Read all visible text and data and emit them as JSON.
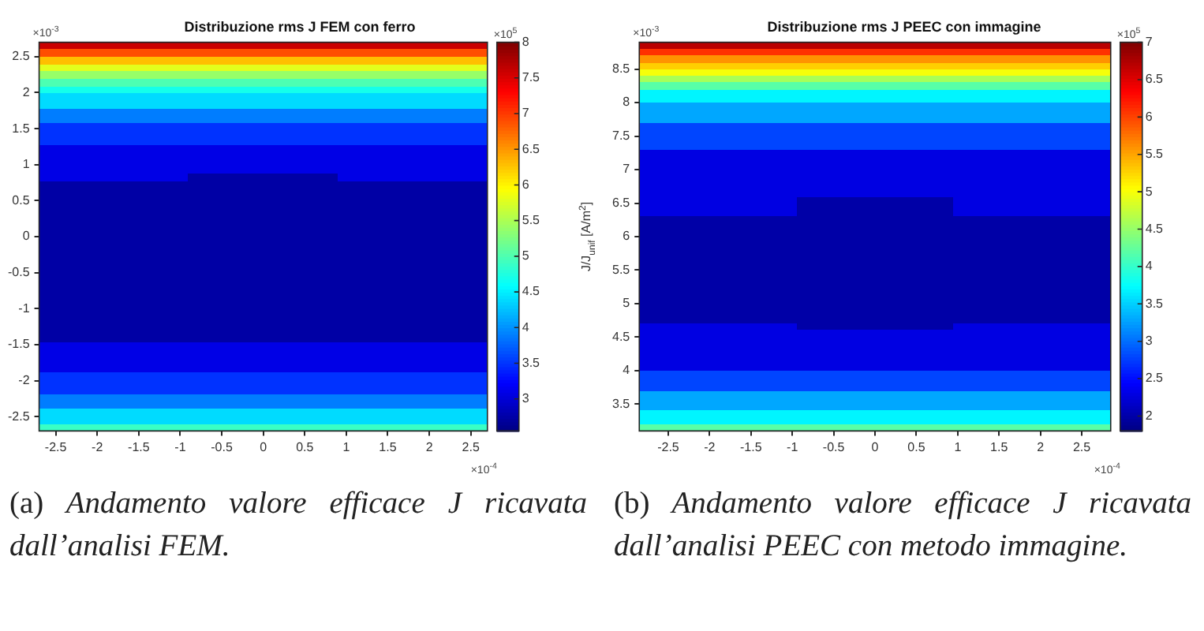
{
  "chart_data": [
    {
      "type": "heatmap",
      "title": "Distribuzione rms J FEM con ferro",
      "clabel": "J/J$_{unif}$ [A/m$^{2}$]",
      "annotations": [
        "×10$^{-3}$",
        "×10$^{-4}$",
        "×10$^{5}$",
        "(a) Andamento valore efficace J ricavata dall’analisi FEM."
      ],
      "xlim": [
        -2.7,
        2.7
      ],
      "xticks": [
        -2.5,
        -2,
        -1.5,
        -1,
        -0.5,
        0,
        0.5,
        1,
        1.5,
        2,
        2.5
      ],
      "ylim": [
        -2.7,
        2.7
      ],
      "yticks": [
        -2.5,
        -2,
        -1.5,
        -1,
        -0.5,
        0,
        0.5,
        1,
        1.5,
        2,
        2.5
      ],
      "clim": [
        2.55,
        8
      ],
      "cticks": [
        3,
        3.5,
        4,
        4.5,
        5,
        5.5,
        6,
        6.5,
        7,
        7.5,
        8
      ],
      "cells": [
        [
          7.6,
          7.6,
          7.6
        ],
        [
          6.9,
          6.9,
          6.9
        ],
        [
          6.3,
          6.3,
          6.3
        ],
        [
          5.8,
          5.8,
          5.8
        ],
        [
          5.4,
          5.4,
          5.4
        ],
        [
          5,
          5,
          5
        ],
        [
          4.7,
          4.7,
          4.7
        ],
        [
          4.4,
          4.4,
          4.4
        ],
        [
          4.4,
          4.4,
          4.4
        ],
        [
          3.9,
          3.9,
          3.9
        ],
        [
          3.9,
          3.9,
          3.9
        ],
        [
          3.5,
          3.5,
          3.5
        ],
        [
          3.5,
          3.5,
          3.5
        ],
        [
          3.5,
          3.5,
          3.5
        ],
        [
          3.1,
          3.1,
          3.1
        ],
        [
          3.1,
          3.1,
          3.1
        ],
        [
          3.1,
          3.1,
          3.1
        ],
        [
          3.1,
          3.1,
          3.1
        ],
        [
          3.1,
          2.75,
          3.1
        ],
        [
          2.75,
          2.75,
          2.75
        ],
        [
          2.75,
          2.75,
          2.75
        ],
        [
          2.75,
          2.75,
          2.75
        ],
        [
          2.75,
          2.75,
          2.75
        ],
        [
          2.75,
          2.75,
          2.75
        ],
        [
          2.75,
          2.75,
          2.75
        ],
        [
          2.75,
          2.75,
          2.75
        ],
        [
          2.75,
          2.75,
          2.75
        ],
        [
          2.75,
          2.75,
          2.75
        ],
        [
          2.75,
          2.75,
          2.75
        ],
        [
          2.75,
          2.75,
          2.75
        ],
        [
          2.75,
          2.75,
          2.75
        ],
        [
          2.75,
          2.75,
          2.75
        ],
        [
          2.75,
          2.75,
          2.75
        ],
        [
          2.75,
          2.75,
          2.75
        ],
        [
          2.75,
          2.75,
          2.75
        ],
        [
          2.75,
          2.75,
          2.75
        ],
        [
          2.75,
          2.75,
          2.75
        ],
        [
          2.75,
          2.75,
          2.75
        ],
        [
          2.75,
          2.75,
          2.75
        ],
        [
          2.75,
          2.75,
          2.75
        ],
        [
          2.75,
          2.75,
          2.75
        ],
        [
          3.1,
          3.1,
          3.1
        ],
        [
          3.1,
          3.1,
          3.1
        ],
        [
          3.1,
          3.1,
          3.1
        ],
        [
          3.1,
          3.1,
          3.1
        ],
        [
          3.5,
          3.5,
          3.5
        ],
        [
          3.5,
          3.5,
          3.5
        ],
        [
          3.5,
          3.5,
          3.5
        ],
        [
          3.9,
          3.9,
          3.9
        ],
        [
          3.9,
          3.9,
          3.9
        ],
        [
          4.4,
          4.4,
          4.4
        ],
        [
          4.4,
          4.4,
          4.4
        ],
        [
          4.9,
          4.9,
          4.9
        ]
      ]
    },
    {
      "type": "heatmap",
      "title": "Distribuzione rms J PEEC con immagine",
      "annotations": [
        "×10$^{-3}$",
        "×10$^{-4}$",
        "×10$^{5}$",
        "(b) Andamento valore efficace J ricavata dall’analisi PEEC con metodo immagine."
      ],
      "xlim": [
        -2.85,
        2.85
      ],
      "xticks": [
        -2.5,
        -2,
        -1.5,
        -1,
        -0.5,
        0,
        0.5,
        1,
        1.5,
        2,
        2.5
      ],
      "ylim": [
        3.1,
        8.9
      ],
      "yticks": [
        3.5,
        4,
        4.5,
        5,
        5.5,
        6,
        6.5,
        7,
        7.5,
        8,
        8.5
      ],
      "clim": [
        1.8,
        7
      ],
      "cticks": [
        2,
        2.5,
        3,
        3.5,
        4,
        4.5,
        5,
        5.5,
        6,
        6.5,
        7
      ],
      "cells": [
        [
          6.7,
          6.7,
          6.7
        ],
        [
          6.1,
          6.1,
          6.1
        ],
        [
          5.6,
          5.6,
          5.6
        ],
        [
          5.3,
          5.3,
          5.3
        ],
        [
          5,
          5,
          5
        ],
        [
          4.6,
          4.6,
          4.6
        ],
        [
          4.2,
          4.2,
          4.2
        ],
        [
          3.7,
          3.7,
          3.7
        ],
        [
          3.7,
          3.7,
          3.7
        ],
        [
          3.3,
          3.3,
          3.3
        ],
        [
          3.3,
          3.3,
          3.3
        ],
        [
          3.3,
          3.3,
          3.3
        ],
        [
          2.8,
          2.8,
          2.8
        ],
        [
          2.8,
          2.8,
          2.8
        ],
        [
          2.8,
          2.8,
          2.8
        ],
        [
          2.8,
          2.8,
          2.8
        ],
        [
          2.3,
          2.3,
          2.3
        ],
        [
          2.3,
          2.3,
          2.3
        ],
        [
          2.3,
          2.3,
          2.3
        ],
        [
          2.3,
          2.3,
          2.3
        ],
        [
          2.3,
          2.3,
          2.3
        ],
        [
          2.3,
          2.3,
          2.3
        ],
        [
          2.3,
          2.3,
          2.3
        ],
        [
          2.3,
          2,
          2.3
        ],
        [
          2.3,
          2,
          2.3
        ],
        [
          2.3,
          2,
          2.3
        ],
        [
          2,
          2,
          2
        ],
        [
          2,
          2,
          2
        ],
        [
          2,
          2,
          2
        ],
        [
          2,
          2,
          2
        ],
        [
          2,
          2,
          2
        ],
        [
          2,
          2,
          2
        ],
        [
          2,
          2,
          2
        ],
        [
          2,
          2,
          2
        ],
        [
          2,
          2,
          2
        ],
        [
          2,
          2,
          2
        ],
        [
          2,
          2,
          2
        ],
        [
          2,
          2,
          2
        ],
        [
          2,
          2,
          2
        ],
        [
          2,
          2,
          2
        ],
        [
          2,
          2,
          2
        ],
        [
          2,
          2,
          2
        ],
        [
          2.3,
          2,
          2.3
        ],
        [
          2.3,
          2.3,
          2.3
        ],
        [
          2.3,
          2.3,
          2.3
        ],
        [
          2.3,
          2.3,
          2.3
        ],
        [
          2.3,
          2.3,
          2.3
        ],
        [
          2.3,
          2.3,
          2.3
        ],
        [
          2.3,
          2.3,
          2.3
        ],
        [
          2.8,
          2.8,
          2.8
        ],
        [
          2.8,
          2.8,
          2.8
        ],
        [
          2.8,
          2.8,
          2.8
        ],
        [
          3.3,
          3.3,
          3.3
        ],
        [
          3.3,
          3.3,
          3.3
        ],
        [
          3.3,
          3.3,
          3.3
        ],
        [
          3.7,
          3.7,
          3.7
        ],
        [
          3.7,
          3.7,
          3.7
        ],
        [
          4.2,
          4.2,
          4.2
        ]
      ]
    }
  ]
}
